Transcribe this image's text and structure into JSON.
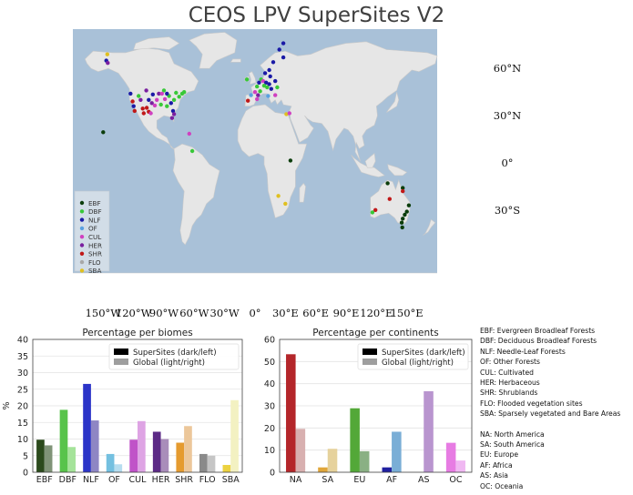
{
  "title": "CEOS LPV SuperSites V2",
  "map": {
    "lon_labels": [
      "150°W",
      "120°W",
      "90°W",
      "60°W",
      "30°W",
      "0°",
      "30°E",
      "60°E",
      "90°E",
      "120°E",
      "150°E"
    ],
    "lat_labels": [
      "60°N",
      "30°N",
      "0°",
      "30°S"
    ],
    "legend": [
      {
        "code": "EBF",
        "color": "#0b3d0b"
      },
      {
        "code": "DBF",
        "color": "#38c838"
      },
      {
        "code": "NLF",
        "color": "#1a1aa6"
      },
      {
        "code": "OF",
        "color": "#5aa0e0"
      },
      {
        "code": "CUL",
        "color": "#d040c0"
      },
      {
        "code": "HER",
        "color": "#7a20a0"
      },
      {
        "code": "SHR",
        "color": "#c01818"
      },
      {
        "code": "FLO",
        "color": "#a8a8a8"
      },
      {
        "code": "SBA",
        "color": "#e0c020"
      }
    ],
    "ocean_color": "#a9c1d8",
    "land_color": "#e6e6e6",
    "sites": [
      {
        "lon": -150,
        "lat": 19.5,
        "biome": "EBF"
      },
      {
        "lon": -147,
        "lat": 65,
        "biome": "NLF"
      },
      {
        "lon": -145.5,
        "lat": 63.5,
        "biome": "HER"
      },
      {
        "lon": -146,
        "lat": 69,
        "biome": "SBA"
      },
      {
        "lon": -123,
        "lat": 44,
        "biome": "NLF"
      },
      {
        "lon": -121,
        "lat": 39,
        "biome": "SHR"
      },
      {
        "lon": -120,
        "lat": 36,
        "biome": "NLF"
      },
      {
        "lon": -119,
        "lat": 33,
        "biome": "SHR"
      },
      {
        "lon": -115,
        "lat": 42.5,
        "biome": "DBF"
      },
      {
        "lon": -113,
        "lat": 40,
        "biome": "HER"
      },
      {
        "lon": -111,
        "lat": 34.5,
        "biome": "SHR"
      },
      {
        "lon": -110,
        "lat": 31.5,
        "biome": "SHR"
      },
      {
        "lon": -107,
        "lat": 35,
        "biome": "SHR"
      },
      {
        "lon": -105,
        "lat": 40,
        "biome": "NLF"
      },
      {
        "lon": -102,
        "lat": 38,
        "biome": "HER"
      },
      {
        "lon": -101,
        "lat": 43.5,
        "biome": "NLF"
      },
      {
        "lon": -99,
        "lat": 36.5,
        "biome": "CUL"
      },
      {
        "lon": -97,
        "lat": 40,
        "biome": "CUL"
      },
      {
        "lon": -95,
        "lat": 44,
        "biome": "HER"
      },
      {
        "lon": -93,
        "lat": 37,
        "biome": "DBF"
      },
      {
        "lon": -90,
        "lat": 46,
        "biome": "DBF"
      },
      {
        "lon": -89,
        "lat": 40.5,
        "biome": "CUL"
      },
      {
        "lon": -87,
        "lat": 36,
        "biome": "DBF"
      },
      {
        "lon": -85,
        "lat": 42.5,
        "biome": "DBF"
      },
      {
        "lon": -83,
        "lat": 38,
        "biome": "NLF"
      },
      {
        "lon": -81,
        "lat": 33,
        "biome": "NLF"
      },
      {
        "lon": -80,
        "lat": 40,
        "biome": "DBF"
      },
      {
        "lon": -78,
        "lat": 44.5,
        "biome": "DBF"
      },
      {
        "lon": -75,
        "lat": 42,
        "biome": "DBF"
      },
      {
        "lon": -72,
        "lat": 44,
        "biome": "DBF"
      },
      {
        "lon": -80,
        "lat": 31,
        "biome": "HER"
      },
      {
        "lon": -82,
        "lat": 28.5,
        "biome": "HER"
      },
      {
        "lon": -65,
        "lat": 18.5,
        "biome": "CUL"
      },
      {
        "lon": -92,
        "lat": 44,
        "biome": "CUL"
      },
      {
        "lon": -87,
        "lat": 44,
        "biome": "NLF"
      },
      {
        "lon": -105,
        "lat": 32.5,
        "biome": "SHR"
      },
      {
        "lon": -70,
        "lat": 45,
        "biome": "DBF"
      },
      {
        "lon": -62,
        "lat": 7.5,
        "biome": "DBF"
      },
      {
        "lon": -107.5,
        "lat": 46,
        "biome": "HER"
      },
      {
        "lon": -103,
        "lat": 31.5,
        "biome": "CUL"
      },
      {
        "lon": 28,
        "lat": 76,
        "biome": "NLF"
      },
      {
        "lon": 24,
        "lat": 72,
        "biome": "NLF"
      },
      {
        "lon": 28,
        "lat": 67,
        "biome": "NLF"
      },
      {
        "lon": 18,
        "lat": 64,
        "biome": "NLF"
      },
      {
        "lon": 14,
        "lat": 59,
        "biome": "NLF"
      },
      {
        "lon": 10,
        "lat": 57,
        "biome": "NLF"
      },
      {
        "lon": 6,
        "lat": 53,
        "biome": "DBF"
      },
      {
        "lon": 8,
        "lat": 52,
        "biome": "CUL"
      },
      {
        "lon": 4,
        "lat": 51,
        "biome": "NLF"
      },
      {
        "lon": 11,
        "lat": 51,
        "biome": "NLF"
      },
      {
        "lon": 14,
        "lat": 50,
        "biome": "NLF"
      },
      {
        "lon": 9,
        "lat": 49,
        "biome": "DBF"
      },
      {
        "lon": 12,
        "lat": 48,
        "biome": "DBF"
      },
      {
        "lon": 16,
        "lat": 47,
        "biome": "NLF"
      },
      {
        "lon": 2,
        "lat": 48.5,
        "biome": "DBF"
      },
      {
        "lon": 5,
        "lat": 45.5,
        "biome": "DBF"
      },
      {
        "lon": 0,
        "lat": 45,
        "biome": "CUL"
      },
      {
        "lon": -4,
        "lat": 43,
        "biome": "OF"
      },
      {
        "lon": -7,
        "lat": 39.5,
        "biome": "SHR"
      },
      {
        "lon": 3,
        "lat": 43,
        "biome": "HER"
      },
      {
        "lon": 13,
        "lat": 42.5,
        "biome": "OF"
      },
      {
        "lon": 15,
        "lat": 55,
        "biome": "NLF"
      },
      {
        "lon": 20,
        "lat": 52,
        "biome": "NLF"
      },
      {
        "lon": -8,
        "lat": 53,
        "biome": "DBF"
      },
      {
        "lon": 22,
        "lat": 48,
        "biome": "DBF"
      },
      {
        "lon": 2,
        "lat": 40.5,
        "biome": "CUL"
      },
      {
        "lon": 20,
        "lat": 43,
        "biome": "CUL"
      },
      {
        "lon": 31,
        "lat": 31,
        "biome": "SBA"
      },
      {
        "lon": 34,
        "lat": 31.5,
        "biome": "CUL"
      },
      {
        "lon": 35,
        "lat": 1.5,
        "biome": "EBF"
      },
      {
        "lon": 23,
        "lat": -21,
        "biome": "SBA"
      },
      {
        "lon": 30,
        "lat": -26,
        "biome": "SBA"
      },
      {
        "lon": 116,
        "lat": -31.5,
        "biome": "DBF"
      },
      {
        "lon": 119,
        "lat": -30,
        "biome": "SHR"
      },
      {
        "lon": 131,
        "lat": -13,
        "biome": "EBF"
      },
      {
        "lon": 133,
        "lat": -23,
        "biome": "SHR"
      },
      {
        "lon": 146,
        "lat": -16,
        "biome": "EBF"
      },
      {
        "lon": 146,
        "lat": -18,
        "biome": "SHR"
      },
      {
        "lon": 152,
        "lat": -27,
        "biome": "EBF"
      },
      {
        "lon": 150,
        "lat": -31,
        "biome": "EBF"
      },
      {
        "lon": 148,
        "lat": -33,
        "biome": "EBF"
      },
      {
        "lon": 146,
        "lat": -35.5,
        "biome": "EBF"
      },
      {
        "lon": 145,
        "lat": -38,
        "biome": "EBF"
      },
      {
        "lon": 145.5,
        "lat": -41,
        "biome": "EBF"
      }
    ]
  },
  "chart_data": [
    {
      "type": "bar",
      "title": "Percentage per biomes",
      "ylabel": "%",
      "ylim": [
        0,
        40
      ],
      "yticks": [
        0,
        5,
        10,
        15,
        20,
        25,
        30,
        35,
        40
      ],
      "grid": true,
      "legend_position": "top-right",
      "categories": [
        "EBF",
        "DBF",
        "NLF",
        "OF",
        "CUL",
        "HER",
        "SHR",
        "FLO",
        "SBA"
      ],
      "series": [
        {
          "name": "SuperSites (dark/left)",
          "values": [
            9.8,
            18.8,
            26.6,
            5.5,
            9.8,
            12.2,
            8.9,
            5.5,
            2.2
          ]
        },
        {
          "name": "Global (light/right)",
          "values": [
            8.1,
            7.6,
            15.6,
            2.4,
            15.4,
            10.0,
            13.9,
            5.0,
            21.7
          ]
        }
      ],
      "dark_colors": [
        "#2b4a1c",
        "#58c34b",
        "#2b34c8",
        "#74c0e0",
        "#c053c8",
        "#5c2a86",
        "#e59b2f",
        "#8a8a8a",
        "#ecd240"
      ],
      "light_colors": [
        "#7f9377",
        "#a5e39a",
        "#8e86c4",
        "#b6ddef",
        "#dea4e4",
        "#a98dba",
        "#ecc79a",
        "#c5c5c5",
        "#f3f1c2"
      ]
    },
    {
      "type": "bar",
      "title": "Percentage per continents",
      "ylim": [
        0,
        60
      ],
      "yticks": [
        0,
        10,
        20,
        30,
        40,
        50,
        60
      ],
      "grid": true,
      "legend_position": "top-right",
      "categories": [
        "NA",
        "SA",
        "EU",
        "AF",
        "AS",
        "OC"
      ],
      "series": [
        {
          "name": "SuperSites (dark/left)",
          "values": [
            53.3,
            2.2,
            28.9,
            2.2,
            0,
            13.3
          ]
        },
        {
          "name": "Global (light/right)",
          "values": [
            19.6,
            10.6,
            9.5,
            18.3,
            36.6,
            5.3
          ]
        }
      ],
      "dark_colors": [
        "#b4262a",
        "#e0a63a",
        "#53a838",
        "#2020a0",
        "#b26dc9",
        "#e77ce3"
      ],
      "light_colors": [
        "#d8b0b0",
        "#e6d29c",
        "#8ab084",
        "#7aaed6",
        "#b995cf",
        "#f0b8f2"
      ]
    }
  ],
  "abbreviations": {
    "biomes": [
      "EBF: Evergreen Broadleaf Forests",
      "DBF: Deciduous Broadleaf Forests",
      "NLF: Needle-Leaf Forests",
      "OF: Other Forests",
      "CUL: Cultivated",
      "HER: Herbaceous",
      "SHR: Shrublands",
      "FLO: Flooded vegetation sites",
      "SBA: Sparsely vegetated and Bare Areas"
    ],
    "continents": [
      "NA: North America",
      "SA: South America",
      "EU: Europe",
      "AF: Africa",
      "AS: Asia",
      "OC: Oceania"
    ]
  }
}
